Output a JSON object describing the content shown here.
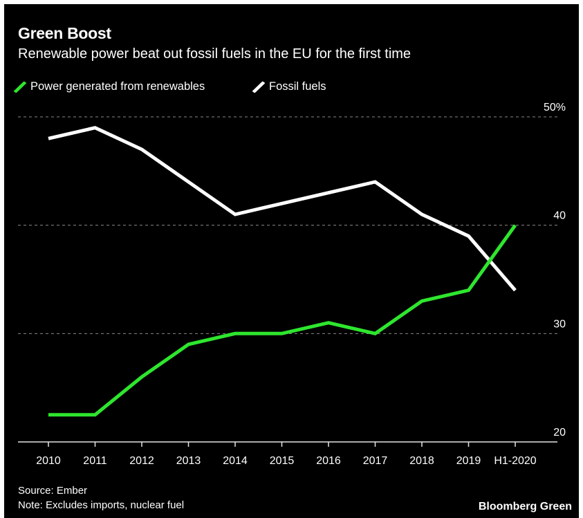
{
  "header": {
    "title": "Green Boost",
    "subtitle": "Renewable power beat out fossil fuels in the EU for the first time"
  },
  "legend": [
    {
      "label": "Power generated from renewables",
      "color": "#2ee62e"
    },
    {
      "label": "Fossil fuels",
      "color": "#ffffff"
    }
  ],
  "footer": {
    "source": "Source: Ember",
    "note": "Note: Excludes imports, nuclear fuel",
    "brand": "Bloomberg Green"
  },
  "chart_data": {
    "type": "line",
    "x": [
      "2010",
      "2011",
      "2012",
      "2013",
      "2014",
      "2015",
      "2016",
      "2017",
      "2018",
      "2019",
      "H1-2020"
    ],
    "series": [
      {
        "name": "Power generated from renewables",
        "color": "#2ee62e",
        "values": [
          22.5,
          22.5,
          26,
          29,
          30,
          30,
          31,
          30,
          33,
          34,
          40
        ]
      },
      {
        "name": "Fossil fuels",
        "color": "#ffffff",
        "values": [
          48,
          49,
          47,
          44,
          41,
          42,
          43,
          44,
          41,
          39,
          34
        ]
      }
    ],
    "ylim": [
      20,
      50
    ],
    "yticks": [
      20,
      30,
      40,
      50
    ],
    "ytick_labels": [
      "20",
      "30",
      "40",
      "50%"
    ],
    "y_axis_position": "right",
    "grid": true
  }
}
